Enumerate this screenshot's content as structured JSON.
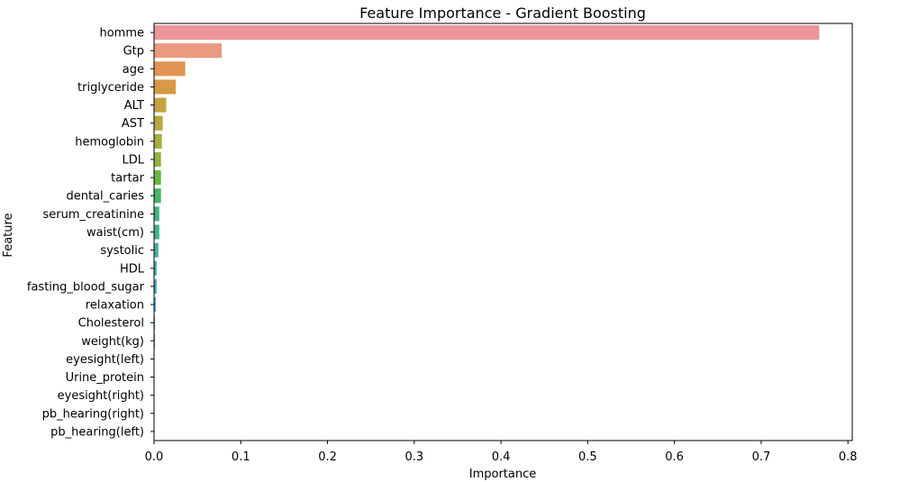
{
  "chart_data": {
    "type": "bar",
    "orientation": "horizontal",
    "title": "Feature Importance - Gradient Boosting",
    "xlabel": "Importance",
    "ylabel": "Feature",
    "xlim": [
      0,
      0.805
    ],
    "xticks": [
      "0.0",
      "0.1",
      "0.2",
      "0.3",
      "0.4",
      "0.5",
      "0.6",
      "0.7",
      "0.8"
    ],
    "grid": false,
    "legend": "none",
    "categories": [
      "homme",
      "Gtp",
      "age",
      "triglyceride",
      "ALT",
      "AST",
      "hemoglobin",
      "LDL",
      "tartar",
      "dental_caries",
      "serum_creatinine",
      "waist(cm)",
      "systolic",
      "HDL",
      "fasting_blood_sugar",
      "relaxation",
      "Cholesterol",
      "weight(kg)",
      "eyesight(left)",
      "Urine_protein",
      "eyesight(right)",
      "pb_hearing(right)",
      "pb_hearing(left)"
    ],
    "values": [
      0.767,
      0.078,
      0.036,
      0.025,
      0.014,
      0.01,
      0.009,
      0.008,
      0.008,
      0.008,
      0.006,
      0.006,
      0.005,
      0.003,
      0.003,
      0.002,
      0.001,
      0.001,
      0.0005,
      0.0005,
      0.0003,
      0.0002,
      0.0001
    ],
    "colors": [
      "#ec969a",
      "#ea9a7e",
      "#e29452",
      "#d69a47",
      "#c8a040",
      "#b8a73f",
      "#a6ad3f",
      "#8fb33f",
      "#64b841",
      "#46b462",
      "#44b281",
      "#43b193",
      "#43afa2",
      "#44adb0",
      "#46aabd",
      "#48a6ce",
      "#4a9fe0",
      "#7a98e8",
      "#a290e8",
      "#c289e6",
      "#db82e0",
      "#e980c9",
      "#ec89b2"
    ]
  }
}
